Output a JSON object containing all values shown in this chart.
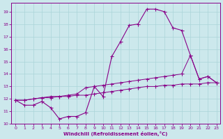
{
  "bg_color": "#cce8ec",
  "grid_color": "#aad4d8",
  "line_color": "#880088",
  "xlabel": "Windchill (Refroidissement éolien,°C)",
  "xlim": [
    -0.5,
    23.4
  ],
  "ylim": [
    10.0,
    19.7
  ],
  "yticks": [
    10,
    11,
    12,
    13,
    14,
    15,
    16,
    17,
    18,
    19
  ],
  "xticks": [
    0,
    1,
    2,
    3,
    4,
    5,
    6,
    7,
    8,
    9,
    10,
    11,
    12,
    13,
    14,
    15,
    16,
    17,
    18,
    19,
    20,
    21,
    22,
    23
  ],
  "line1_x": [
    0,
    1,
    2,
    3,
    4,
    5,
    6,
    7,
    8,
    9,
    10,
    11,
    12,
    13,
    14,
    15,
    16,
    17,
    18,
    19,
    20,
    21,
    22,
    23
  ],
  "line1_y": [
    11.9,
    11.5,
    11.5,
    11.8,
    11.3,
    10.4,
    10.6,
    10.6,
    10.9,
    13.0,
    12.2,
    15.4,
    16.6,
    17.9,
    18.0,
    19.2,
    19.2,
    19.0,
    17.7,
    17.5,
    15.5,
    13.6,
    13.8,
    13.3
  ],
  "line2_x": [
    0,
    1,
    2,
    3,
    4,
    5,
    6,
    7,
    8,
    9,
    10,
    11,
    12,
    13,
    14,
    15,
    16,
    17,
    18,
    19,
    20,
    21,
    22,
    23
  ],
  "line2_y": [
    11.9,
    11.9,
    12.0,
    12.1,
    12.2,
    12.2,
    12.3,
    12.4,
    12.9,
    13.0,
    13.1,
    13.2,
    13.3,
    13.4,
    13.5,
    13.6,
    13.7,
    13.8,
    13.9,
    14.0,
    15.5,
    13.6,
    13.8,
    13.3
  ],
  "line3_x": [
    0,
    1,
    2,
    3,
    4,
    5,
    6,
    7,
    8,
    9,
    10,
    11,
    12,
    13,
    14,
    15,
    16,
    17,
    18,
    19,
    20,
    21,
    22,
    23
  ],
  "line3_y": [
    11.9,
    11.9,
    12.0,
    12.1,
    12.1,
    12.2,
    12.2,
    12.3,
    12.3,
    12.4,
    12.5,
    12.6,
    12.7,
    12.8,
    12.9,
    13.0,
    13.0,
    13.1,
    13.1,
    13.2,
    13.2,
    13.2,
    13.3,
    13.3
  ]
}
